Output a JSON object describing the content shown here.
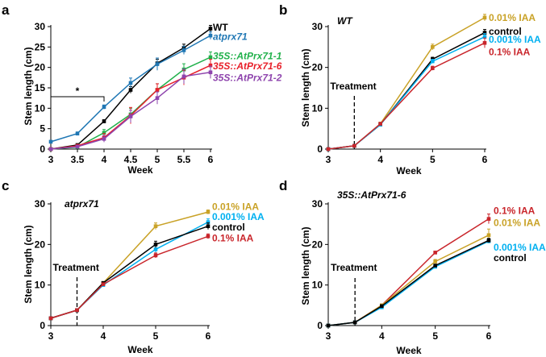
{
  "colors": {
    "WT": "#000000",
    "atprx71": "#1f77b4",
    "oe1": "#22b14c",
    "oe6": "#e8202a",
    "oe2": "#8e44ad",
    "control": "#000000",
    "iaa001": "#00b0f0",
    "iaa01": "#c9a227",
    "iaa1": "#c9252b"
  },
  "chart_data": [
    {
      "id": "a",
      "type": "line",
      "panel_letter": "a",
      "title": "",
      "xlabel": "Week",
      "ylabel": "Stem length (cm)",
      "xlim": [
        3,
        6
      ],
      "ylim": [
        0,
        30
      ],
      "xticks": [
        3,
        3.5,
        4,
        4.5,
        5,
        5.5,
        6
      ],
      "xtick_labels": [
        "3",
        "3.5",
        "4",
        "4.5",
        "5",
        "5.5",
        "6"
      ],
      "yticks": [
        0,
        5,
        10,
        15,
        20,
        25,
        30
      ],
      "ytick_labels": [
        "0",
        "5",
        "10",
        "15",
        "20",
        "25",
        "30"
      ],
      "significance": {
        "label": "*",
        "x_from": 3,
        "x_to": 4
      },
      "series": [
        {
          "name": "WT",
          "color": "#000000",
          "italic": false,
          "x": [
            3,
            3.5,
            4,
            4.5,
            5,
            5.5,
            6
          ],
          "y": [
            0,
            1,
            6.8,
            14.5,
            21,
            24.8,
            29.5
          ],
          "err": [
            0.1,
            0.2,
            0.4,
            0.8,
            1.0,
            0.9,
            0.8
          ],
          "label_y": 29.8
        },
        {
          "name": "atprx71",
          "color": "#1f77b4",
          "italic": true,
          "x": [
            3,
            3.5,
            4,
            4.5,
            5,
            5.5,
            6
          ],
          "y": [
            1.8,
            3.8,
            10.3,
            16.2,
            20.8,
            24.2,
            27.8
          ],
          "err": [
            0.2,
            0.4,
            0.5,
            1.2,
            1.5,
            1.0,
            0.9
          ],
          "label_y": 27.5
        },
        {
          "name": "35S::AtPrx71-1",
          "color": "#22b14c",
          "italic": true,
          "x": [
            3,
            3.5,
            4,
            4.5,
            5,
            5.5,
            6
          ],
          "y": [
            0,
            0.5,
            4,
            8.5,
            14.5,
            19.5,
            22.5
          ],
          "err": [
            0.1,
            0.2,
            0.8,
            1.5,
            1.5,
            1.4,
            1.3
          ],
          "label_y": 22.8
        },
        {
          "name": "35S::AtPrx71-6",
          "color": "#e8202a",
          "italic": true,
          "x": [
            3,
            3.5,
            4,
            4.5,
            5,
            5.5,
            6
          ],
          "y": [
            0,
            0.8,
            2.8,
            8.2,
            14.5,
            17.5,
            20.5
          ],
          "err": [
            0.1,
            0.2,
            1.0,
            2.0,
            1.5,
            1.8,
            1.5
          ],
          "label_y": 20.3
        },
        {
          "name": "35S::AtPrx71-2",
          "color": "#8e44ad",
          "italic": true,
          "x": [
            3,
            3.5,
            4,
            4.5,
            5,
            5.5,
            6
          ],
          "y": [
            0,
            0.6,
            2.5,
            8,
            12.5,
            17.8,
            18.8
          ],
          "err": [
            0.1,
            0.2,
            0.8,
            1.5,
            1.5,
            1.8,
            1.5
          ],
          "label_y": 17.5
        }
      ]
    },
    {
      "id": "b",
      "type": "line",
      "panel_letter": "b",
      "title": "WT",
      "title_italic": false,
      "xlabel": "Week",
      "ylabel": "Stem length (cm)",
      "xlim": [
        3,
        6
      ],
      "ylim": [
        0,
        30
      ],
      "xticks": [
        3,
        4,
        5,
        6
      ],
      "xtick_labels": [
        "3",
        "4",
        "5",
        "6"
      ],
      "yticks": [
        0,
        10,
        20,
        30
      ],
      "ytick_labels": [
        "0",
        "10",
        "20",
        "30"
      ],
      "treatment": {
        "label": "Treatment",
        "x": 3.5
      },
      "series": [
        {
          "name": "0.01% IAA",
          "color": "#c9a227",
          "x": [
            3,
            3.5,
            4,
            5,
            6
          ],
          "y": [
            0,
            0.8,
            6.2,
            25,
            32.2
          ],
          "err": [
            0.1,
            0.1,
            0.4,
            0.7,
            0.8
          ],
          "label_y": 32.2
        },
        {
          "name": "control",
          "color": "#000000",
          "x": [
            3,
            3.5,
            4,
            5,
            6
          ],
          "y": [
            0,
            0.8,
            6,
            22,
            28.5
          ],
          "err": [
            0.1,
            0.1,
            0.3,
            0.5,
            0.8
          ],
          "label_y": 28.8
        },
        {
          "name": "0.001% IAA",
          "color": "#00b0f0",
          "x": [
            3,
            3.5,
            4,
            5,
            6
          ],
          "y": [
            0,
            0.8,
            6,
            21.5,
            27.5
          ],
          "err": [
            0.1,
            0.1,
            0.3,
            0.5,
            0.8
          ],
          "label_y": 26.8
        },
        {
          "name": "0.1% IAA",
          "color": "#c9252b",
          "x": [
            3,
            3.5,
            4,
            5,
            6
          ],
          "y": [
            0,
            0.8,
            6.2,
            19.8,
            26
          ],
          "err": [
            0.1,
            0.1,
            0.3,
            0.5,
            1.2
          ],
          "label_y": 23.8
        }
      ]
    },
    {
      "id": "c",
      "type": "line",
      "panel_letter": "c",
      "title": "atprx71",
      "title_italic": true,
      "xlabel": "Week",
      "ylabel": "Stem length (cm)",
      "xlim": [
        3,
        6
      ],
      "ylim": [
        0,
        30
      ],
      "xticks": [
        3,
        4,
        5,
        6
      ],
      "xtick_labels": [
        "3",
        "4",
        "5",
        "6"
      ],
      "yticks": [
        0,
        10,
        20,
        30
      ],
      "ytick_labels": [
        "0",
        "10",
        "20",
        "30"
      ],
      "treatment": {
        "label": "Treatment",
        "x": 3.5
      },
      "series": [
        {
          "name": "0.01% IAA",
          "color": "#c9a227",
          "x": [
            3,
            3.5,
            4,
            5,
            6
          ],
          "y": [
            1.8,
            3.8,
            10.5,
            24.5,
            28
          ],
          "err": [
            0.1,
            0.2,
            0.3,
            0.8,
            0.5
          ],
          "label_y": 29.3
        },
        {
          "name": "0.001% IAA",
          "color": "#00b0f0",
          "x": [
            3,
            3.5,
            4,
            5,
            6
          ],
          "y": [
            1.8,
            3.8,
            10,
            18.8,
            25.5
          ],
          "err": [
            0.1,
            0.2,
            0.3,
            0.8,
            0.8
          ],
          "label_y": 26.8
        },
        {
          "name": "control",
          "color": "#000000",
          "x": [
            3,
            3.5,
            4,
            5,
            6
          ],
          "y": [
            1.8,
            3.8,
            10.5,
            20,
            24.5
          ],
          "err": [
            0.1,
            0.2,
            0.3,
            0.8,
            0.8
          ],
          "label_y": 24.2
        },
        {
          "name": "0.1% IAA",
          "color": "#c9252b",
          "x": [
            3,
            3.5,
            4,
            5,
            6
          ],
          "y": [
            1.8,
            3.8,
            10.2,
            17.3,
            22
          ],
          "err": [
            0.1,
            0.2,
            0.3,
            0.6,
            0.6
          ],
          "label_y": 21.6
        }
      ]
    },
    {
      "id": "d",
      "type": "line",
      "panel_letter": "d",
      "title": "35S::AtPrx71-6",
      "title_italic": true,
      "xlabel": "Week",
      "ylabel": "Stem length (cm)",
      "xlim": [
        3,
        6
      ],
      "ylim": [
        0,
        30
      ],
      "xticks": [
        3,
        4,
        5,
        6
      ],
      "xtick_labels": [
        "3",
        "4",
        "5",
        "6"
      ],
      "yticks": [
        0,
        10,
        20,
        30
      ],
      "ytick_labels": [
        "0",
        "10",
        "20",
        "30"
      ],
      "treatment": {
        "label": "Treatment",
        "x": 3.5
      },
      "series": [
        {
          "name": "0.1% IAA",
          "color": "#c9252b",
          "x": [
            3,
            3.5,
            4,
            5,
            6
          ],
          "y": [
            0,
            0.8,
            5,
            18,
            26.3
          ],
          "err": [
            0.1,
            0.1,
            0.3,
            0.3,
            1.2
          ],
          "label_y": 28.3
        },
        {
          "name": "0.01% IAA",
          "color": "#c9a227",
          "x": [
            3,
            3.5,
            4,
            5,
            6
          ],
          "y": [
            0,
            0.8,
            5,
            15.8,
            22.3
          ],
          "err": [
            0.1,
            0.1,
            0.3,
            0.5,
            1.5
          ],
          "label_y": 25.3
        },
        {
          "name": "0.001% IAA",
          "color": "#00b0f0",
          "x": [
            3,
            3.5,
            4,
            5,
            6
          ],
          "y": [
            0,
            0.8,
            4.5,
            14.5,
            20.8
          ],
          "err": [
            0.1,
            0.1,
            0.3,
            0.3,
            0.5
          ],
          "label_y": 19.3
        },
        {
          "name": "control",
          "color": "#000000",
          "x": [
            3,
            3.5,
            4,
            5,
            6
          ],
          "y": [
            0,
            0.8,
            4.8,
            14.8,
            21
          ],
          "err": [
            0.1,
            0.1,
            0.3,
            0.3,
            0.5
          ],
          "label_y": 16.7
        }
      ]
    }
  ]
}
